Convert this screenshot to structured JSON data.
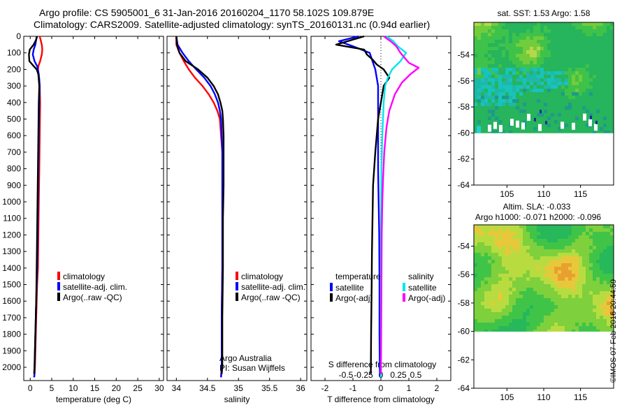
{
  "header": {
    "line1": "Argo profile: CS 5905001_6 31-Jan-2016 20160204_1170 58.102S 109.879E",
    "line2": "Climatology: CARS2009. Satellite-adjusted climatology: synTS_20160131.nc (0.94d earlier)"
  },
  "credit": "©IMOS 07-Feb-2016 20:44:59",
  "colors": {
    "climatology": "#ff0000",
    "satellite": "#0000ff",
    "argo": "#000000",
    "cyan": "#00e5ee",
    "magenta": "#ff00ff"
  },
  "chart_data": [
    {
      "id": "temperature",
      "type": "line",
      "xlabel": "temperature (deg C)",
      "xlim": [
        -1.5,
        31
      ],
      "ylim": [
        2080,
        0
      ],
      "xticks": [
        0,
        5,
        10,
        15,
        20,
        25,
        30
      ],
      "yticks": [
        0,
        100,
        200,
        300,
        400,
        500,
        600,
        700,
        800,
        900,
        1000,
        1100,
        1200,
        1300,
        1400,
        1500,
        1600,
        1700,
        1800,
        1900,
        2000
      ],
      "legend": {
        "placement": "lower-center",
        "entries": [
          "climatology",
          "satellite-adj. clim.",
          "Argo(..raw -QC)"
        ]
      },
      "series": [
        {
          "name": "climatology",
          "color": "#ff0000",
          "x": [
            2.2,
            2.4,
            2.7,
            2.8,
            2.7,
            2.3,
            1.9,
            1.8,
            1.9,
            2.0,
            2.2,
            2.3,
            2.2,
            2.1,
            2.0,
            1.9,
            1.8,
            1.6,
            1.5,
            1.4,
            1.3,
            1.2,
            1.1,
            1.0,
            0.9
          ],
          "y": [
            0,
            20,
            50,
            80,
            110,
            150,
            180,
            200,
            230,
            260,
            300,
            400,
            600,
            800,
            1000,
            1200,
            1400,
            1500,
            1600,
            1700,
            1800,
            1900,
            2000,
            2040,
            2060
          ]
        },
        {
          "name": "satellite-adj. clim.",
          "color": "#0000ff",
          "x": [
            1.5,
            1.4,
            1.2,
            0.8,
            0.6,
            1.0,
            1.6,
            1.8,
            2.0,
            2.1,
            2.2,
            2.1,
            2.0,
            1.9,
            1.8,
            1.7,
            1.6,
            1.5,
            1.4,
            1.3,
            1.2,
            1.1,
            1.0,
            1.0,
            0.9
          ],
          "y": [
            0,
            20,
            50,
            80,
            110,
            150,
            180,
            200,
            230,
            260,
            300,
            400,
            600,
            800,
            1000,
            1200,
            1400,
            1500,
            1600,
            1700,
            1800,
            1900,
            2000,
            2040,
            2060
          ]
        },
        {
          "name": "Argo(..raw -QC)",
          "color": "#000000",
          "x": [
            1.6,
            1.4,
            0.8,
            -0.1,
            -0.3,
            -0.2,
            0.8,
            1.5,
            1.9,
            2.0,
            2.1,
            2.0,
            1.9,
            1.8,
            1.7,
            1.6,
            1.5,
            1.4,
            1.3,
            1.2,
            1.1,
            1.0,
            0.9
          ],
          "y": [
            0,
            20,
            50,
            80,
            110,
            150,
            180,
            200,
            230,
            260,
            300,
            400,
            600,
            800,
            1000,
            1200,
            1400,
            1600,
            1700,
            1800,
            1900,
            2000,
            2040
          ]
        }
      ]
    },
    {
      "id": "salinity",
      "type": "line",
      "xlabel": "salinity",
      "xlim": [
        33.85,
        36.1
      ],
      "ylim": [
        2080,
        0
      ],
      "xticks": [
        34,
        34.5,
        35,
        35.5,
        36
      ],
      "xticklabels": [
        "34",
        "34.5",
        "35",
        "35.5",
        "36"
      ],
      "legend": {
        "placement": "lower-center",
        "entries": [
          "climatology",
          "satellite-adj. clim.",
          "Argo(..raw -QC)"
        ]
      },
      "annotation": [
        "Argo Australia",
        "PI: Susan Wijffels"
      ],
      "series": [
        {
          "name": "climatology",
          "color": "#ff0000",
          "x": [
            34.0,
            34.0,
            34.05,
            34.12,
            34.2,
            34.3,
            34.42,
            34.52,
            34.6,
            34.66,
            34.7,
            34.72,
            34.74,
            34.74,
            34.74,
            34.74,
            34.73,
            34.73,
            34.73,
            34.72
          ],
          "y": [
            0,
            50,
            100,
            150,
            200,
            250,
            300,
            350,
            400,
            450,
            500,
            600,
            700,
            900,
            1100,
            1400,
            1700,
            1900,
            2000,
            2060
          ]
        },
        {
          "name": "satellite-adj. clim.",
          "color": "#0000ff",
          "x": [
            34.0,
            34.02,
            34.1,
            34.2,
            34.32,
            34.45,
            34.55,
            34.62,
            34.67,
            34.7,
            34.72,
            34.73,
            34.74,
            34.74,
            34.74,
            34.74,
            34.73,
            34.73,
            34.73,
            34.72
          ],
          "y": [
            0,
            50,
            100,
            150,
            200,
            250,
            300,
            350,
            400,
            450,
            500,
            600,
            700,
            900,
            1100,
            1400,
            1700,
            1900,
            2000,
            2060
          ]
        },
        {
          "name": "Argo(..raw -QC)",
          "color": "#000000",
          "x": [
            34.0,
            34.01,
            34.05,
            34.15,
            34.35,
            34.5,
            34.6,
            34.67,
            34.71,
            34.74,
            34.75,
            34.76,
            34.76,
            34.76,
            34.75,
            34.75,
            34.74,
            34.74,
            34.74,
            34.73
          ],
          "y": [
            0,
            50,
            100,
            150,
            200,
            250,
            300,
            350,
            400,
            450,
            500,
            600,
            700,
            900,
            1100,
            1400,
            1700,
            1900,
            2000,
            2040
          ]
        }
      ]
    },
    {
      "id": "difference",
      "type": "line",
      "xlabel": "T difference from climatology",
      "xlabel2": "S difference from climatology",
      "xlim": [
        -2.5,
        2.5
      ],
      "ylim": [
        2080,
        0
      ],
      "xticks": [
        -2,
        -1,
        0,
        1,
        2
      ],
      "xticklabels": [
        "-2",
        "-1",
        "0",
        "1",
        "2"
      ],
      "sticks": [
        -0.5,
        -0.25,
        0,
        0.25,
        0.5
      ],
      "sticklabels": [
        "-0.5",
        "-0.25",
        "0",
        "0.25",
        "0.5"
      ],
      "legend": {
        "placement": "lower-center",
        "groups": [
          {
            "title": "temperature",
            "entries": [
              "satellite",
              "Argo(-adj)"
            ]
          },
          {
            "title": "salinity",
            "entries": [
              "satellite",
              "Argo(-adj)"
            ]
          }
        ]
      },
      "series": [
        {
          "name": "temperature satellite",
          "color": "#0000ff",
          "x": [
            -0.8,
            -1.5,
            -1.0,
            -0.4,
            -0.3,
            -0.2,
            -0.15,
            -0.1,
            -0.1,
            -0.1,
            -0.1,
            -0.08,
            -0.06,
            -0.05,
            -0.05,
            -0.04,
            -0.03
          ],
          "y": [
            0,
            30,
            60,
            100,
            150,
            200,
            250,
            300,
            400,
            600,
            800,
            1000,
            1200,
            1500,
            1800,
            2000,
            2060
          ]
        },
        {
          "name": "temperature Argo(-adj)",
          "color": "#000000",
          "x": [
            -0.6,
            -1.2,
            -1.6,
            -0.6,
            -0.5,
            -0.3,
            -0.15,
            0.1,
            0.3,
            0.1,
            0.0,
            -0.1,
            -0.2,
            -0.28,
            -0.3,
            -0.32,
            -0.33,
            -0.35,
            -0.36
          ],
          "y": [
            0,
            30,
            50,
            80,
            110,
            140,
            170,
            200,
            250,
            300,
            400,
            500,
            700,
            900,
            1100,
            1300,
            1500,
            1800,
            2040
          ]
        },
        {
          "name": "salinity satellite",
          "color": "#00e5ee",
          "x": [
            0.2,
            0.45,
            0.6,
            0.9,
            0.7,
            0.4,
            0.25,
            0.15,
            0.1,
            0.05,
            0.02,
            0.01,
            0.0,
            0.0,
            0.0,
            0.0
          ],
          "y": [
            0,
            30,
            60,
            100,
            150,
            200,
            250,
            300,
            400,
            600,
            800,
            1000,
            1300,
            1600,
            1900,
            2060
          ]
        },
        {
          "name": "salinity Argo(-adj)",
          "color": "#ff00ff",
          "x": [
            0.1,
            0.35,
            0.55,
            0.7,
            0.85,
            1.0,
            1.35,
            1.05,
            0.75,
            0.5,
            0.3,
            0.2,
            0.12,
            0.08,
            0.05,
            0.03,
            0.02,
            0.01,
            0.0
          ],
          "y": [
            0,
            30,
            60,
            100,
            130,
            160,
            190,
            230,
            280,
            350,
            450,
            550,
            700,
            850,
            1000,
            1200,
            1500,
            1800,
            2040
          ]
        }
      ]
    },
    {
      "id": "sst-map",
      "type": "heatmap",
      "title": "sat. SST: 1.53 Argo: 1.58",
      "xlim": [
        100.5,
        119.5
      ],
      "ylim": [
        -64,
        -51.5
      ],
      "xticks": [
        105,
        110,
        115
      ],
      "yticks": [
        -54,
        -56,
        -58,
        -60,
        -62,
        -64
      ],
      "land_below": -60
    },
    {
      "id": "sla-map",
      "type": "heatmap",
      "title": "Altim. SLA: -0.033",
      "subtitle": "Argo h1000: -0.071 h2000: -0.096",
      "xlim": [
        100.5,
        119.5
      ],
      "ylim": [
        -64,
        -52.5
      ],
      "xticks": [
        105,
        110,
        115
      ],
      "yticks": [
        -54,
        -56,
        -58,
        -60,
        -62,
        -64
      ],
      "land_below": -60
    }
  ]
}
